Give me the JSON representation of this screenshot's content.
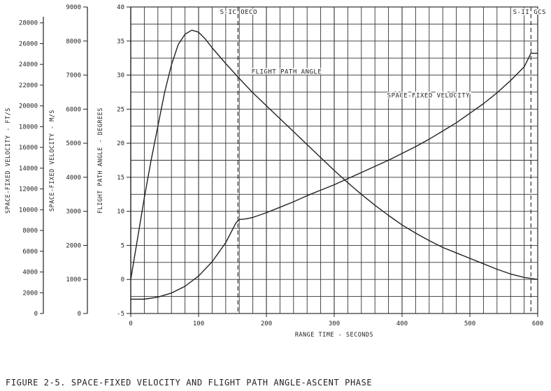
{
  "caption": "FIGURE 2-5.  SPACE-FIXED VELOCITY AND FLIGHT PATH ANGLE-ASCENT PHASE",
  "colors": {
    "ink": "#222222",
    "grid": "#333333",
    "background": "#ffffff"
  },
  "chart_data": {
    "type": "line",
    "title": "",
    "xlabel": "RANGE TIME - SECONDS",
    "xlim": [
      0,
      600
    ],
    "xticks": [
      0,
      100,
      200,
      300,
      400,
      500,
      600
    ],
    "grid": true,
    "axes": {
      "ft_s": {
        "label": "SPACE-FIXED VELOCITY - FT/S",
        "ticks": [
          0,
          2000,
          4000,
          6000,
          8000,
          10000,
          12000,
          14000,
          16000,
          18000,
          20000,
          22000,
          24000,
          26000,
          28000
        ]
      },
      "m_s": {
        "label": "SPACE-FIXED VELOCITY - M/S",
        "ticks": [
          0,
          1000,
          2000,
          3000,
          4000,
          5000,
          6000,
          7000,
          8000,
          9000
        ]
      },
      "deg": {
        "label": "FLIGHT PATH ANGLE - DEGREES",
        "ylim": [
          -5,
          40
        ],
        "ticks": [
          -5,
          0,
          5,
          10,
          15,
          20,
          25,
          30,
          35,
          40
        ]
      }
    },
    "events": [
      {
        "label": "S-IC OECO",
        "x": 158
      },
      {
        "label": "S-II GCS",
        "x": 590
      }
    ],
    "annotations": [
      {
        "text": "FLIGHT PATH ANGLE",
        "x": 178,
        "y": 30.2
      },
      {
        "text": "SPACE-FIXED VELOCITY",
        "x": 378,
        "y": 26.7
      }
    ],
    "series": [
      {
        "name": "FLIGHT PATH ANGLE",
        "axis": "deg",
        "x": [
          0,
          10,
          20,
          30,
          40,
          50,
          60,
          70,
          80,
          90,
          100,
          110,
          120,
          140,
          160,
          180,
          200,
          220,
          240,
          260,
          280,
          300,
          320,
          340,
          360,
          380,
          400,
          420,
          440,
          460,
          480,
          500,
          520,
          540,
          560,
          580,
          600
        ],
        "values": [
          0.0,
          6.0,
          12.0,
          17.5,
          22.5,
          27.5,
          31.5,
          34.5,
          36.0,
          36.6,
          36.3,
          35.3,
          34.0,
          31.7,
          29.5,
          27.4,
          25.5,
          23.6,
          21.7,
          19.8,
          17.9,
          16.0,
          14.2,
          12.5,
          10.9,
          9.4,
          8.0,
          6.8,
          5.7,
          4.7,
          3.9,
          3.1,
          2.3,
          1.5,
          0.8,
          0.3,
          0.0
        ]
      },
      {
        "name": "SPACE-FIXED VELOCITY",
        "axis": "deg",
        "x": [
          0,
          20,
          40,
          60,
          80,
          100,
          120,
          140,
          155,
          160,
          170,
          180,
          200,
          220,
          240,
          260,
          280,
          300,
          320,
          340,
          360,
          380,
          400,
          420,
          440,
          460,
          480,
          500,
          520,
          540,
          560,
          580,
          590,
          600
        ],
        "values": [
          -2.9,
          -2.9,
          -2.6,
          -2.0,
          -1.0,
          0.5,
          2.6,
          5.4,
          8.3,
          8.8,
          8.9,
          9.1,
          9.8,
          10.6,
          11.4,
          12.3,
          13.1,
          13.9,
          14.8,
          15.7,
          16.6,
          17.5,
          18.5,
          19.5,
          20.6,
          21.8,
          23.0,
          24.4,
          25.8,
          27.4,
          29.2,
          31.2,
          33.2,
          33.2
        ]
      }
    ]
  }
}
